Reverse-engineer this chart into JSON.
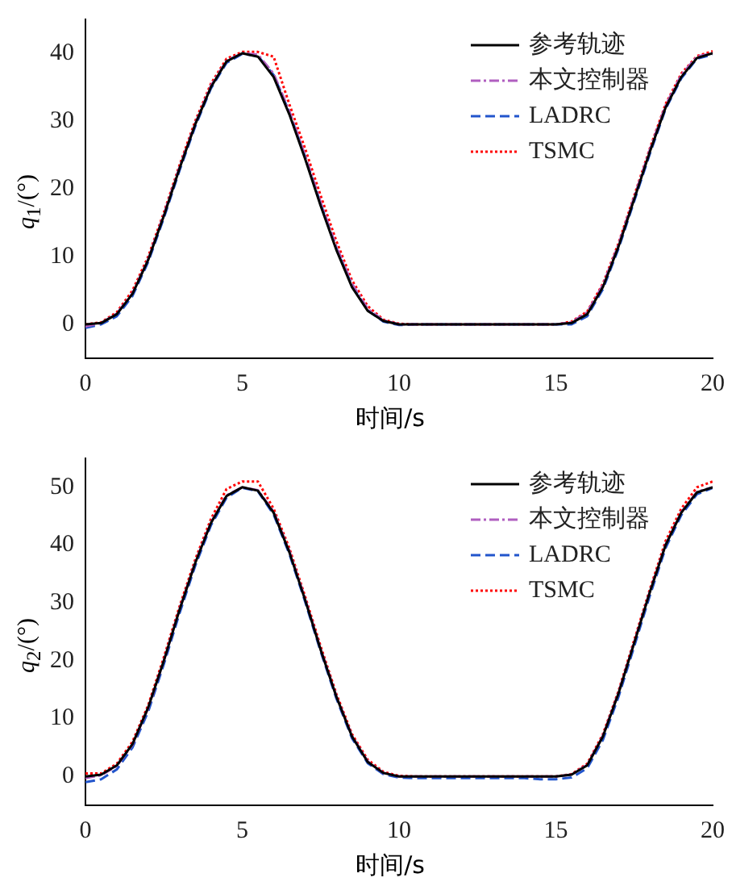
{
  "chart_data": [
    {
      "type": "line",
      "xlabel": "时间/s",
      "ylabel": "q$_{1}$/(°)",
      "x": [
        0,
        0.5,
        1,
        1.5,
        2,
        2.5,
        3,
        3.5,
        4,
        4.5,
        5,
        5.5,
        6,
        6.5,
        7,
        7.5,
        8,
        8.5,
        9,
        9.5,
        10,
        10.5,
        11,
        11.5,
        12,
        12.5,
        13,
        13.5,
        14,
        14.5,
        15,
        15.5,
        16,
        16.5,
        17,
        17.5,
        18,
        18.5,
        19,
        19.5,
        20
      ],
      "xlim": [
        0,
        20
      ],
      "xticks": [
        0,
        5,
        10,
        15,
        20
      ],
      "ylim": [
        -5,
        45
      ],
      "yticks": [
        0,
        10,
        20,
        30,
        40
      ],
      "grid": false,
      "legend": "top right",
      "marker": "none",
      "series": [
        {
          "name": "参考轨迹",
          "color": "#000000",
          "line_style": "solid",
          "values": [
            0,
            0.2,
            1.5,
            4.5,
            9.5,
            16,
            23,
            29.5,
            35,
            38.8,
            40,
            39.5,
            36.5,
            31,
            24.5,
            17.5,
            11,
            5.5,
            2,
            0.5,
            0,
            0,
            0,
            0,
            0,
            0,
            0,
            0,
            0,
            0,
            0,
            0.2,
            1.5,
            5.5,
            11.5,
            18.5,
            25.5,
            32,
            36.5,
            39.3,
            40
          ]
        },
        {
          "name": "本文控制器",
          "color": "#b05ec0",
          "line_style": "dashdot",
          "values": [
            -0.3,
            0.2,
            1.6,
            4.6,
            9.6,
            16.2,
            23.2,
            29.6,
            35.2,
            38.9,
            40,
            39.8,
            37,
            31.5,
            25,
            18,
            11.5,
            6,
            2.3,
            0.6,
            0,
            0,
            0,
            0,
            0,
            0,
            0,
            0,
            0,
            0,
            0,
            0.3,
            1.8,
            5.8,
            11.8,
            18.8,
            25.8,
            32.3,
            36.8,
            39.5,
            40
          ]
        },
        {
          "name": "LADRC",
          "color": "#2255cc",
          "line_style": "dashed",
          "values": [
            -0.5,
            0,
            1.2,
            4.2,
            9.2,
            15.7,
            22.7,
            29.2,
            34.8,
            38.6,
            39.9,
            39.6,
            36.8,
            31.3,
            24.8,
            17.8,
            11.2,
            5.7,
            2.1,
            0.4,
            -0.1,
            0,
            0,
            0,
            0,
            0,
            0,
            0,
            0,
            0,
            0,
            0,
            1.2,
            5.2,
            11.2,
            18.2,
            25.2,
            31.8,
            36.3,
            39.2,
            39.8
          ]
        },
        {
          "name": "TSMC",
          "color": "#ff0000",
          "line_style": "dotted",
          "values": [
            0,
            0.3,
            1.8,
            5,
            10,
            16.5,
            23.5,
            30,
            35.5,
            39.2,
            40.2,
            40.2,
            39.5,
            32.5,
            26,
            19,
            12.3,
            6.5,
            2.7,
            0.7,
            0.1,
            0,
            0,
            0,
            0,
            0,
            0,
            0,
            0,
            0,
            0,
            0.4,
            1.9,
            6,
            12,
            19,
            26,
            32.5,
            37,
            39.6,
            40.3
          ]
        }
      ]
    },
    {
      "type": "line",
      "xlabel": "时间/s",
      "ylabel": "q$_{2}$/(°)",
      "x": [
        0,
        0.5,
        1,
        1.5,
        2,
        2.5,
        3,
        3.5,
        4,
        4.5,
        5,
        5.5,
        6,
        6.5,
        7,
        7.5,
        8,
        8.5,
        9,
        9.5,
        10,
        10.5,
        11,
        11.5,
        12,
        12.5,
        13,
        13.5,
        14,
        14.5,
        15,
        15.5,
        16,
        16.5,
        17,
        17.5,
        18,
        18.5,
        19,
        19.5,
        20
      ],
      "xlim": [
        0,
        20
      ],
      "xticks": [
        0,
        5,
        10,
        15,
        20
      ],
      "ylim": [
        -5,
        55
      ],
      "yticks": [
        0,
        10,
        20,
        30,
        40,
        50
      ],
      "grid": false,
      "legend": "top right",
      "marker": "none",
      "series": [
        {
          "name": "参考轨迹",
          "color": "#000000",
          "line_style": "solid",
          "values": [
            0,
            0.3,
            1.9,
            5.6,
            11.9,
            20,
            28.8,
            36.9,
            43.8,
            48.5,
            50,
            49.4,
            45.6,
            38.8,
            30.6,
            21.9,
            13.8,
            6.9,
            2.5,
            0.6,
            0,
            0,
            0,
            0,
            0,
            0,
            0,
            0,
            0,
            0,
            0,
            0.3,
            1.9,
            6.9,
            14.4,
            23.1,
            31.9,
            40,
            45.6,
            49.1,
            50
          ]
        },
        {
          "name": "本文控制器",
          "color": "#b05ec0",
          "line_style": "dashdot",
          "values": [
            -0.3,
            0.2,
            1.8,
            5.5,
            11.8,
            20,
            28.9,
            37,
            43.9,
            48.6,
            50,
            49.5,
            45.8,
            39,
            30.8,
            22,
            13.9,
            7,
            2.6,
            0.6,
            0,
            0,
            0,
            0,
            0,
            0,
            0,
            0,
            0,
            0,
            0,
            0.3,
            2,
            7,
            14.5,
            23.2,
            32,
            40.1,
            45.7,
            49.2,
            50
          ]
        },
        {
          "name": "LADRC",
          "color": "#2255cc",
          "line_style": "dashed",
          "values": [
            -1,
            -0.5,
            1.2,
            5,
            11.2,
            19.4,
            28.2,
            36.4,
            43.4,
            48.2,
            49.9,
            49.3,
            45.3,
            38.5,
            30.3,
            21.6,
            13.5,
            6.6,
            2.3,
            0.4,
            -0.2,
            -0.3,
            -0.3,
            -0.3,
            -0.3,
            -0.3,
            -0.3,
            -0.3,
            -0.3,
            -0.5,
            -0.5,
            -0.2,
            1.4,
            6.3,
            13.8,
            22.5,
            31.3,
            39.5,
            45.2,
            48.8,
            49.9
          ]
        },
        {
          "name": "TSMC",
          "color": "#ff0000",
          "line_style": "dotted",
          "values": [
            0.5,
            0.5,
            2.2,
            6,
            12.3,
            20.6,
            29.4,
            37.5,
            44.5,
            49.7,
            51,
            51,
            46.3,
            39.5,
            31.2,
            22.5,
            14.3,
            7.3,
            2.9,
            0.8,
            0.1,
            0,
            0,
            0,
            0,
            0,
            0,
            0,
            0,
            0,
            0,
            0.4,
            2.2,
            7.3,
            14.8,
            23.6,
            32.4,
            40.7,
            46.3,
            50,
            51
          ]
        }
      ]
    }
  ]
}
